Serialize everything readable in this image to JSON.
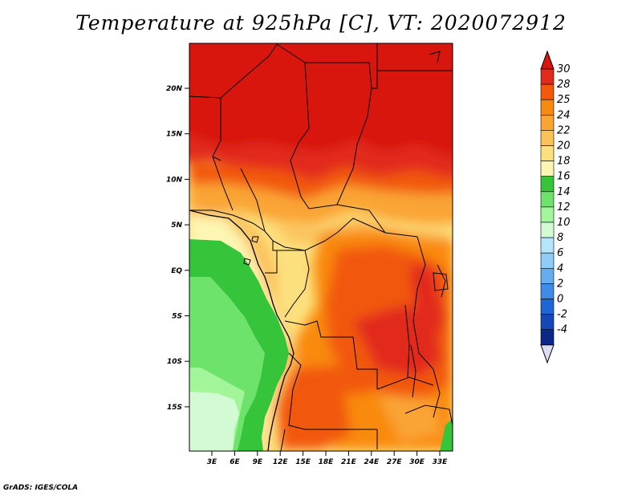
{
  "title": "Temperature at 925hPa [C], VT: 2020072912",
  "credit": "GrADS: IGES/COLA",
  "map": {
    "lat_ticks": [
      "20N",
      "15N",
      "10N",
      "5N",
      "EQ",
      "5S",
      "10S",
      "15S"
    ],
    "lon_ticks": [
      "3E",
      "6E",
      "9E",
      "12E",
      "15E",
      "18E",
      "21E",
      "24E",
      "27E",
      "30E",
      "33E"
    ]
  },
  "colorbar": {
    "labels": [
      "30",
      "28",
      "25",
      "24",
      "22",
      "20",
      "18",
      "16",
      "14",
      "12",
      "10",
      "8",
      "6",
      "4",
      "2",
      "0",
      "-2",
      "-4"
    ],
    "colors": [
      "#e22a1a",
      "#f2590c",
      "#f98a10",
      "#faa434",
      "#fbc15a",
      "#fde07e",
      "#fdf6b3",
      "#36c43b",
      "#6ee36b",
      "#a3f59a",
      "#d2fbd4",
      "#b6e6fb",
      "#8ecbf5",
      "#64aef0",
      "#3e8ce6",
      "#1d66d6",
      "#1547b6",
      "#0c2785"
    ],
    "top_color": "#d8160f",
    "bottom_color": "#dcdcf2"
  }
}
